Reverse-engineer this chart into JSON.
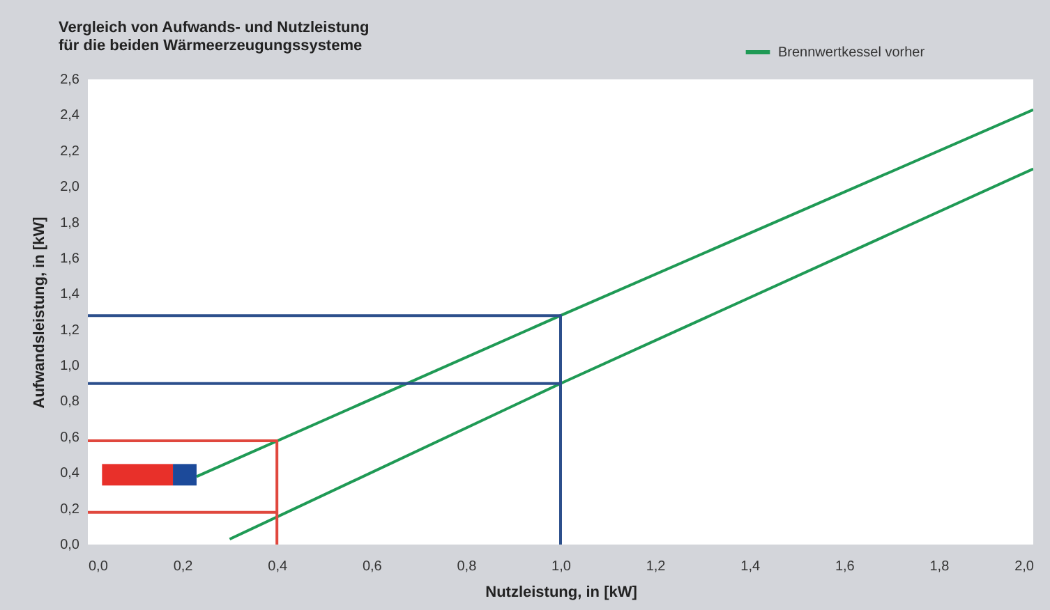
{
  "chart_data": {
    "type": "line",
    "title": "Vergleich von Aufwands- und Nutzleistung\nfür die beiden Wärmeerzeugungssysteme",
    "xlabel": "Nutzleistung, in [kW]",
    "ylabel": "Aufwandsleistung, in [kW]",
    "xlim": [
      0,
      2
    ],
    "ylim": [
      0,
      2.6
    ],
    "xticks": [
      {
        "value": 0,
        "label": "0,0"
      },
      {
        "value": 0.2,
        "label": "0,2"
      },
      {
        "value": 0.4,
        "label": "0,4"
      },
      {
        "value": 0.6,
        "label": "0,6"
      },
      {
        "value": 0.8,
        "label": "0,8"
      },
      {
        "value": 1,
        "label": "1,0"
      },
      {
        "value": 1.2,
        "label": "1,2"
      },
      {
        "value": 1.4,
        "label": "1,4"
      },
      {
        "value": 1.6,
        "label": "1,6"
      },
      {
        "value": 1.8,
        "label": "1,8"
      },
      {
        "value": 2,
        "label": "2,0"
      }
    ],
    "yticks": [
      {
        "value": 0,
        "label": "0,0"
      },
      {
        "value": 0.2,
        "label": "0,2"
      },
      {
        "value": 0.4,
        "label": "0,4"
      },
      {
        "value": 0.6,
        "label": "0,6"
      },
      {
        "value": 0.8,
        "label": "0,8"
      },
      {
        "value": 1,
        "label": "1,0"
      },
      {
        "value": 1.2,
        "label": "1,2"
      },
      {
        "value": 1.4,
        "label": "1,4"
      },
      {
        "value": 1.6,
        "label": "1,6"
      },
      {
        "value": 1.8,
        "label": "1,8"
      },
      {
        "value": 2,
        "label": "2,0"
      },
      {
        "value": 2.2,
        "label": "2,2"
      },
      {
        "value": 2.4,
        "label": "2,4"
      },
      {
        "value": 2.6,
        "label": "2,6"
      }
    ],
    "grid": false,
    "legend": "top right",
    "marker": "none",
    "line_style": "solid",
    "series": [
      {
        "color": "#1f9a55",
        "x": [
          0.23,
          1,
          2
        ],
        "values": [
          0.38,
          1.28,
          2.43
        ]
      },
      {
        "name": "Brennwertkessel vorher",
        "color": "#1f9a55",
        "x": [
          0.3,
          1,
          2
        ],
        "values": [
          0.03,
          0.9,
          2.1
        ]
      },
      {
        "color": "#2c4f8c",
        "x": [
          0,
          1,
          1
        ],
        "values": [
          1.28,
          1.28,
          0
        ]
      },
      {
        "color": "#2c4f8c",
        "x": [
          0,
          1
        ],
        "values": [
          0.9,
          0.9
        ]
      },
      {
        "color": "#e0483e",
        "x": [
          0,
          0.4,
          0.4
        ],
        "values": [
          0.58,
          0.58,
          0
        ]
      },
      {
        "color": "#e0483e",
        "x": [
          0,
          0.4
        ],
        "values": [
          0.18,
          0.18
        ]
      }
    ]
  }
}
